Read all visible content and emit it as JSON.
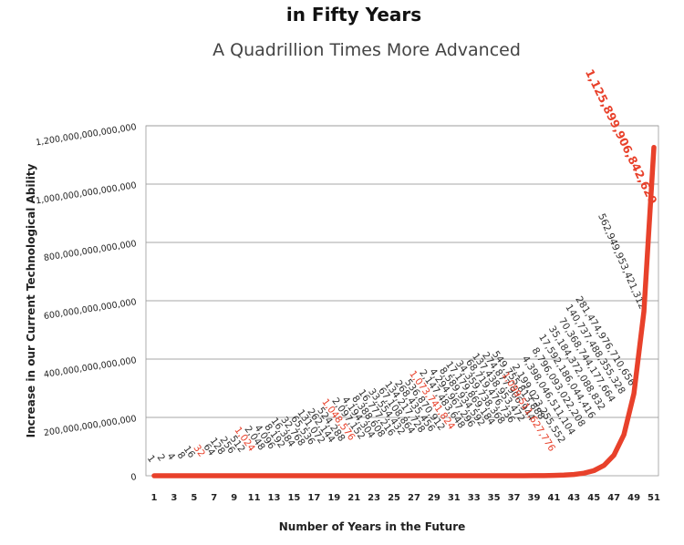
{
  "chart_data": {
    "type": "line",
    "title": "in Fifty Years",
    "subtitle": "A Quadrillion Times More Advanced",
    "xlabel": "Number of Years in the Future",
    "ylabel": "Increase in our Current Technological Ability",
    "ylim": [
      0,
      1200000000000000
    ],
    "xlim": [
      1,
      51
    ],
    "grid": true,
    "line_color": "#e8412b",
    "highlight_color": "#e8412b",
    "y_ticks": [
      {
        "value": 0,
        "label": "0"
      },
      {
        "value": 200000000000000,
        "label": "200,000,000,000,000"
      },
      {
        "value": 400000000000000,
        "label": "400,000,000,000,000"
      },
      {
        "value": 600000000000000,
        "label": "600,000,000,000,000"
      },
      {
        "value": 800000000000000,
        "label": "800,000,000,000,000"
      },
      {
        "value": 1000000000000000,
        "label": "1,000,000,000,000,000"
      },
      {
        "value": 1200000000000000,
        "label": "1,200,000,000,000,000"
      }
    ],
    "x_ticks": [
      1,
      3,
      5,
      7,
      9,
      11,
      13,
      15,
      17,
      19,
      21,
      23,
      25,
      27,
      29,
      31,
      33,
      35,
      37,
      39,
      41,
      43,
      45,
      47,
      49,
      51
    ],
    "series": [
      {
        "x": [
          1,
          2,
          3,
          4,
          5,
          6,
          7,
          8,
          9,
          10,
          11,
          12,
          13,
          14,
          15,
          16,
          17,
          18,
          19,
          20,
          21,
          22,
          23,
          24,
          25,
          26,
          27,
          28,
          29,
          30,
          31,
          32,
          33,
          34,
          35,
          36,
          37,
          38,
          39,
          40,
          41,
          42,
          43,
          44,
          45,
          46,
          47,
          48,
          49,
          50,
          51
        ],
        "values": [
          1,
          2,
          4,
          8,
          16,
          32,
          64,
          128,
          256,
          512,
          1024,
          2048,
          4096,
          8192,
          16384,
          32768,
          65536,
          131072,
          262144,
          524288,
          1048576,
          2097152,
          4194304,
          8388608,
          16777216,
          33554432,
          67108864,
          134217728,
          268435456,
          536870912,
          1073741824,
          2147483648,
          4294967296,
          8589934592,
          17179869184,
          34359738368,
          68719476736,
          137438953472,
          274877906944,
          549755813888,
          1099511627776,
          2199023255552,
          4398046511104,
          8796093022208,
          17592186044416,
          35184372088832,
          70368744177664,
          140737488355328,
          281474976710656,
          562949953421312,
          1125899906842620
        ]
      }
    ],
    "data_labels": [
      "1",
      "2",
      "4",
      "8",
      "16",
      "32",
      "64",
      "128",
      "256",
      "512",
      "1,024",
      "2,048",
      "4,096",
      "8,192",
      "16,384",
      "32,768",
      "65,536",
      "131,072",
      "262,144",
      "524,288",
      "1,048,576",
      "2,097,152",
      "4,194,304",
      "8,388,608",
      "16,777,216",
      "33,554,432",
      "67,108,864",
      "134,217,728",
      "268,435,456",
      "536,870,912",
      "1,073,741,824",
      "2,147,483,648",
      "4,294,967,296",
      "8,589,934,592",
      "17,179,869,184",
      "34,359,738,368",
      "68,719,476,736",
      "137,438,953,472",
      "274,877,906,944",
      "549,755,813,888",
      "1,099,511,627,776",
      "2,199,023,255,552",
      "4,398,046,511,104",
      "8,796,093,022,208",
      "17,592,186,044,416",
      "35,184,372,088,832",
      "70,368,744,177,664",
      "140,737,488,355,328",
      "281,474,976,710,656",
      "562,949,953,421,312",
      "1,125,899,906,842,620"
    ],
    "highlighted_years": [
      6,
      11,
      21,
      31,
      41,
      51
    ]
  }
}
